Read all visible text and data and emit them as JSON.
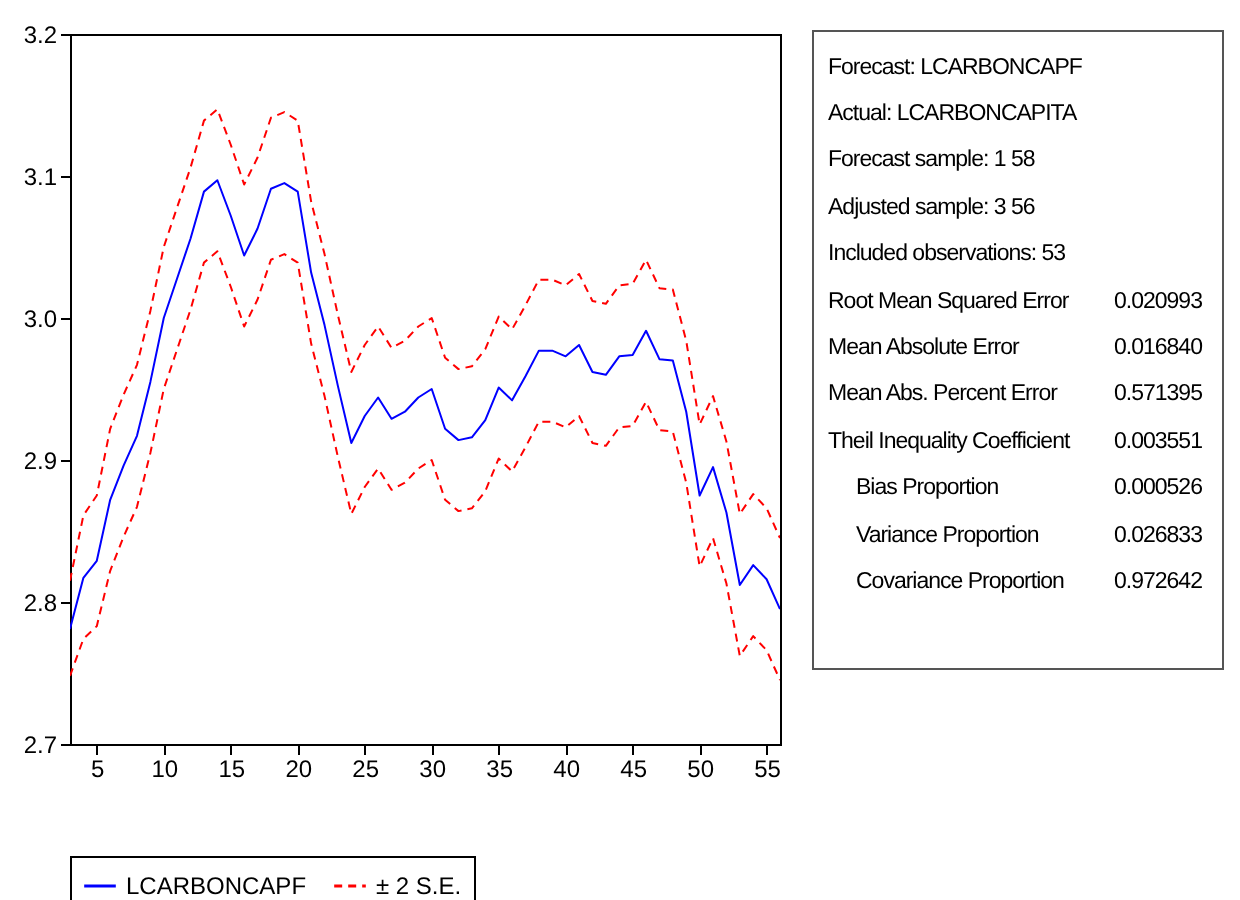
{
  "chart_data": [
    {
      "type": "line",
      "legend": "bottom",
      "xlim": [
        3,
        56
      ],
      "xticks": [
        5,
        10,
        15,
        20,
        25,
        30,
        35,
        40,
        45,
        50,
        55
      ],
      "ylim": [
        2.7,
        3.2
      ],
      "yticks": [
        {
          "value": 2.7,
          "label": "2.7"
        },
        {
          "value": 2.8,
          "label": "2.8"
        },
        {
          "value": 2.9,
          "label": "2.9"
        },
        {
          "value": 3.0,
          "label": "3.0"
        },
        {
          "value": 3.1,
          "label": "3.1"
        },
        {
          "value": 3.2,
          "label": "3.2"
        }
      ],
      "x": [
        3,
        4,
        5,
        6,
        7,
        8,
        9,
        10,
        11,
        12,
        13,
        14,
        15,
        16,
        17,
        18,
        19,
        20,
        21,
        22,
        23,
        24,
        25,
        26,
        27,
        28,
        29,
        30,
        31,
        32,
        33,
        34,
        35,
        36,
        37,
        38,
        39,
        40,
        41,
        42,
        43,
        44,
        45,
        46,
        47,
        48,
        49,
        50,
        51,
        52,
        53,
        54,
        55,
        56
      ],
      "series": [
        {
          "name": "LCARBONCAPF",
          "color": "#0000ff",
          "line_style": "solid",
          "values": [
            2.781,
            2.817,
            2.829,
            2.872,
            2.896,
            2.917,
            2.955,
            3.0,
            3.028,
            3.056,
            3.089,
            3.097,
            3.072,
            3.044,
            3.063,
            3.091,
            3.095,
            3.089,
            3.032,
            2.995,
            2.952,
            2.912,
            2.931,
            2.944,
            2.929,
            2.934,
            2.944,
            2.95,
            2.922,
            2.914,
            2.916,
            2.928,
            2.951,
            2.942,
            2.959,
            2.977,
            2.977,
            2.973,
            2.981,
            2.962,
            2.96,
            2.973,
            2.974,
            2.991,
            2.971,
            2.97,
            2.934,
            2.875,
            2.895,
            2.863,
            2.812,
            2.826,
            2.816,
            2.795
          ]
        },
        {
          "name": "± 2 S.E.",
          "color": "#ff0000",
          "line_style": "dashed",
          "values": [
            2.815,
            2.861,
            2.875,
            2.922,
            2.946,
            2.967,
            3.005,
            3.05,
            3.078,
            3.106,
            3.139,
            3.147,
            3.122,
            3.094,
            3.113,
            3.141,
            3.145,
            3.139,
            3.082,
            3.045,
            3.002,
            2.962,
            2.981,
            2.994,
            2.979,
            2.984,
            2.994,
            3.0,
            2.972,
            2.964,
            2.966,
            2.978,
            3.001,
            2.992,
            3.009,
            3.027,
            3.027,
            3.023,
            3.031,
            3.012,
            3.01,
            3.023,
            3.024,
            3.041,
            3.021,
            3.02,
            2.984,
            2.925,
            2.945,
            2.913,
            2.862,
            2.876,
            2.866,
            2.845
          ]
        },
        {
          "color": "#ff0000",
          "line_style": "dashed",
          "values": [
            2.748,
            2.774,
            2.783,
            2.822,
            2.846,
            2.867,
            2.905,
            2.95,
            2.978,
            3.006,
            3.039,
            3.047,
            3.022,
            2.994,
            3.013,
            3.041,
            3.045,
            3.039,
            2.982,
            2.945,
            2.902,
            2.862,
            2.881,
            2.894,
            2.879,
            2.884,
            2.894,
            2.9,
            2.872,
            2.864,
            2.866,
            2.878,
            2.901,
            2.892,
            2.909,
            2.927,
            2.927,
            2.923,
            2.931,
            2.912,
            2.91,
            2.923,
            2.924,
            2.941,
            2.921,
            2.92,
            2.884,
            2.825,
            2.845,
            2.813,
            2.762,
            2.776,
            2.766,
            2.745
          ]
        }
      ]
    },
    {
      "type": "other",
      "annotations": [
        "Forecast: LCARBONCAPF",
        "Actual: LCARBONCAPITA",
        "Forecast sample: 1 58",
        "Adjusted sample: 3 56",
        "Included observations: 53",
        "Root Mean Squared Error\t0.020993",
        "Mean Absolute Error\t0.016840",
        "Mean Abs. Percent Error\t0.571395",
        "Theil Inequality Coefficient\t0.003551",
        "\tBias Proportion\t0.000526",
        "\tVariance Proportion\t0.026833",
        "\tCovariance Proportion\t0.972642"
      ]
    }
  ]
}
